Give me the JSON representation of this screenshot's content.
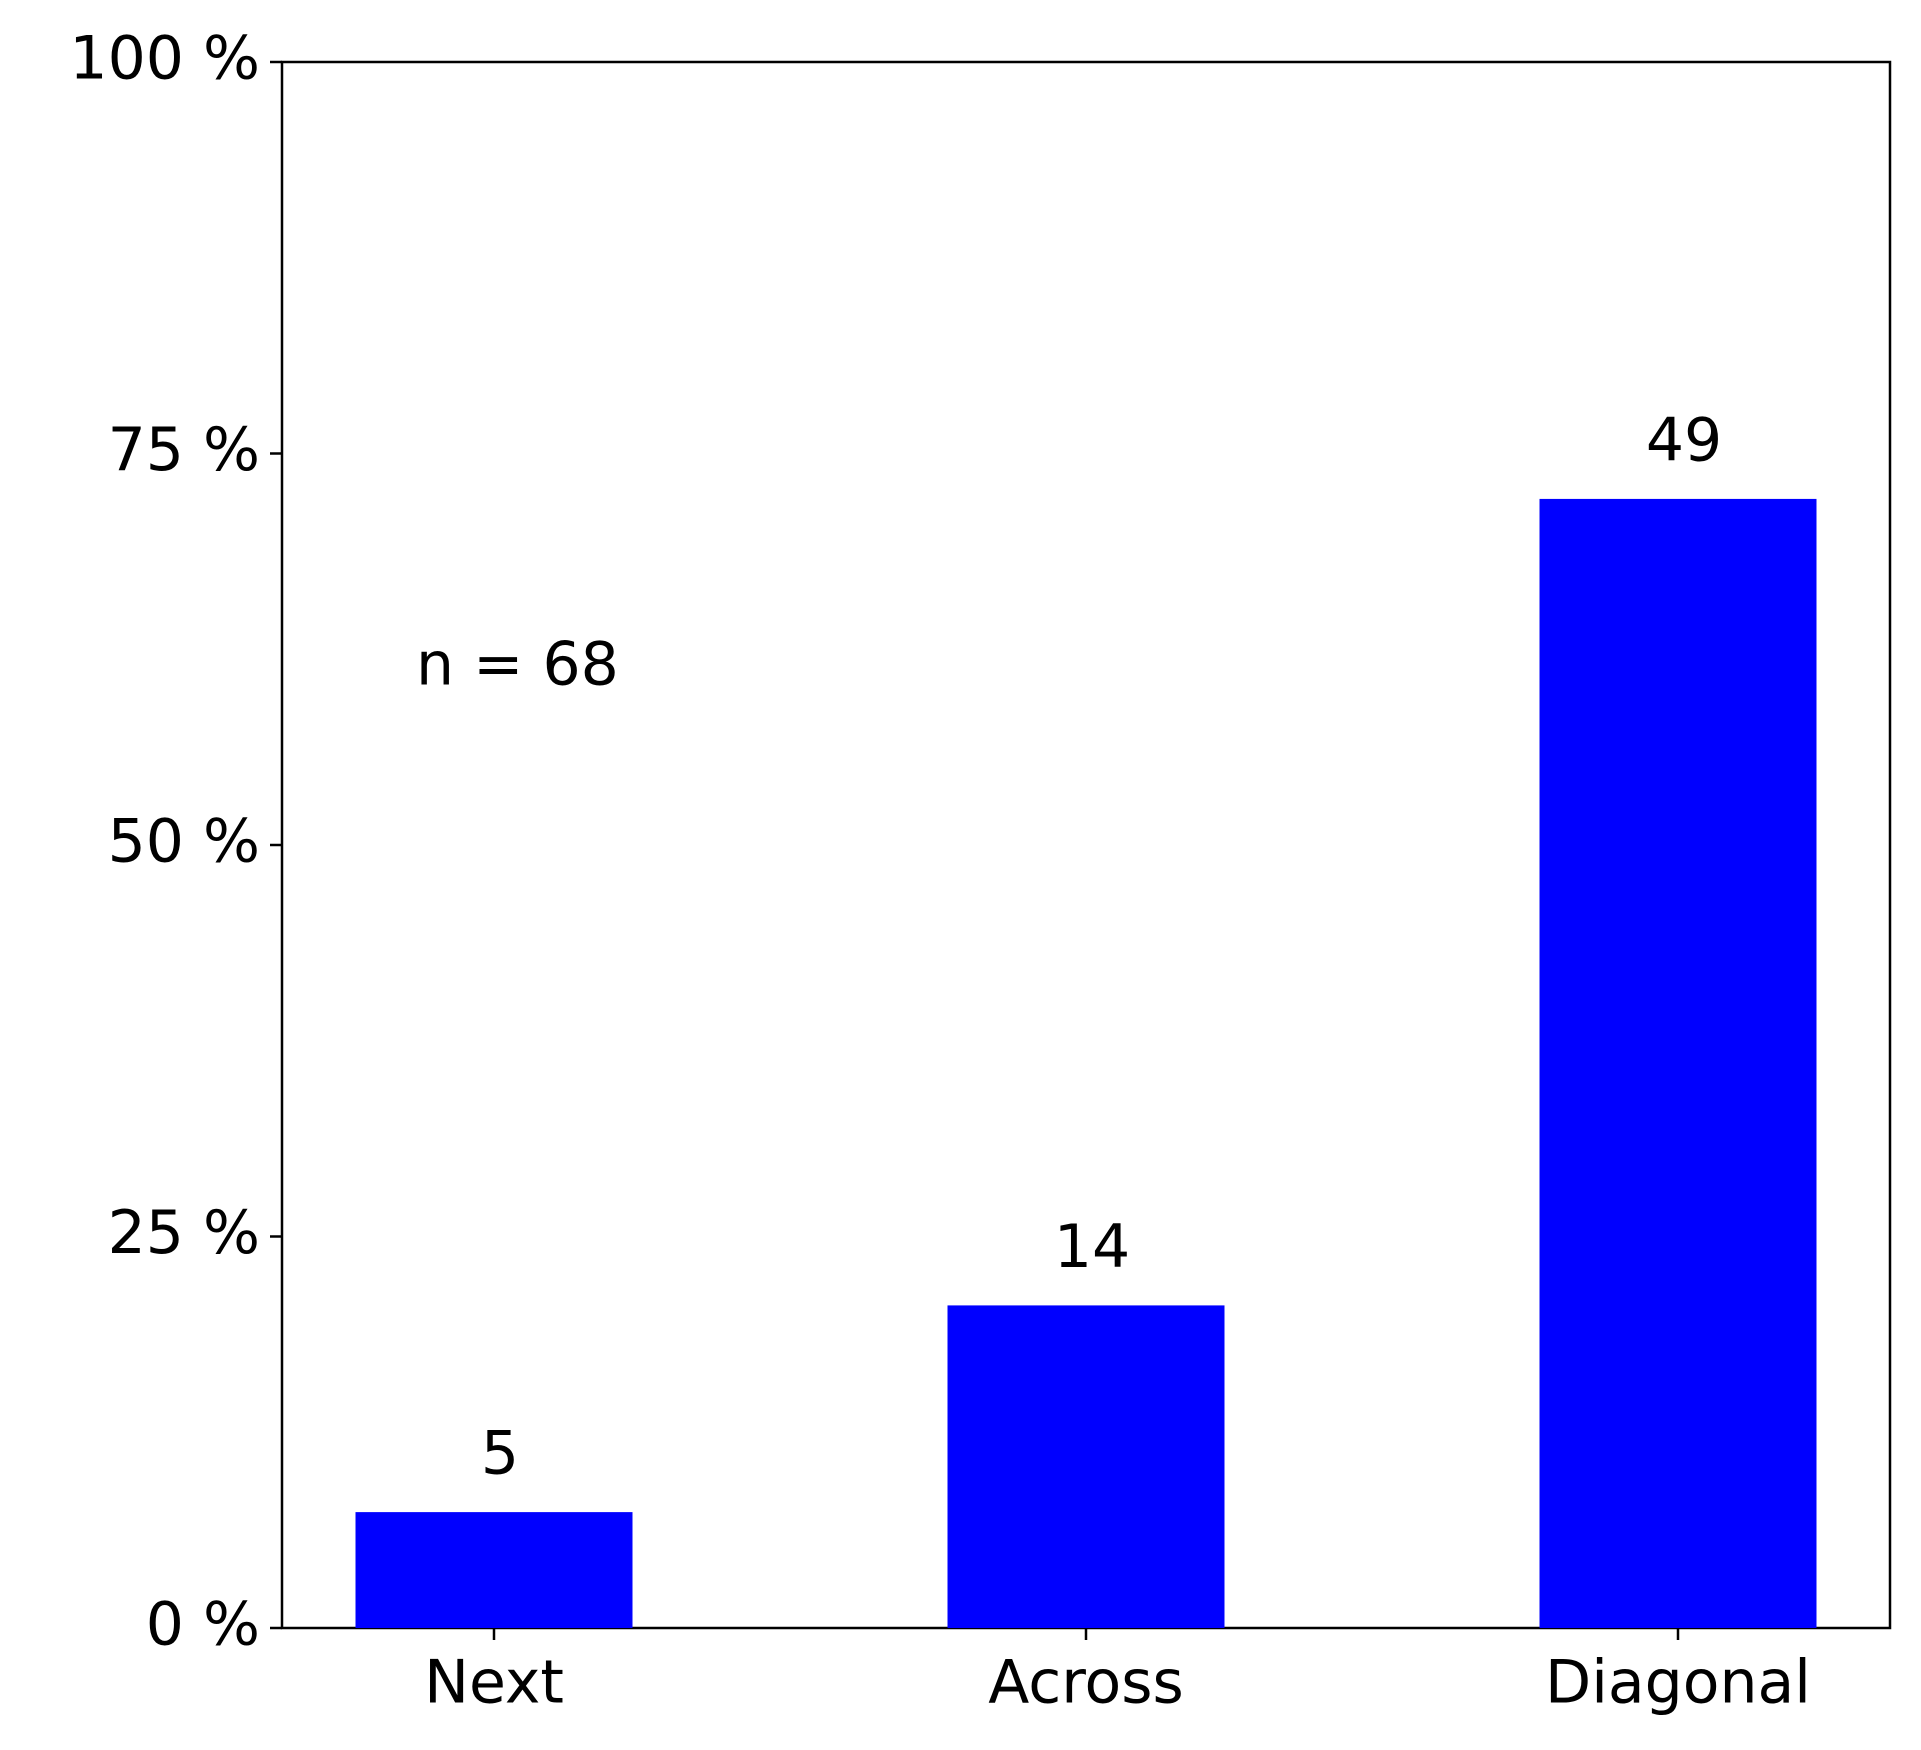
{
  "chart_data": {
    "type": "bar",
    "categories": [
      "Next",
      "Across",
      "Diagonal"
    ],
    "values": [
      7.4,
      20.6,
      72.1
    ],
    "counts": [
      "5",
      "14",
      "49"
    ],
    "color": "#0000ff",
    "annotation": "n = 68",
    "ylim": [
      0,
      100
    ],
    "yticks": [
      {
        "value": 0,
        "label": "0 %"
      },
      {
        "value": 25,
        "label": "25 %"
      },
      {
        "value": 50,
        "label": "50 %"
      },
      {
        "value": 75,
        "label": "75 %"
      },
      {
        "value": 100,
        "label": "100 %"
      }
    ],
    "grid": false
  }
}
